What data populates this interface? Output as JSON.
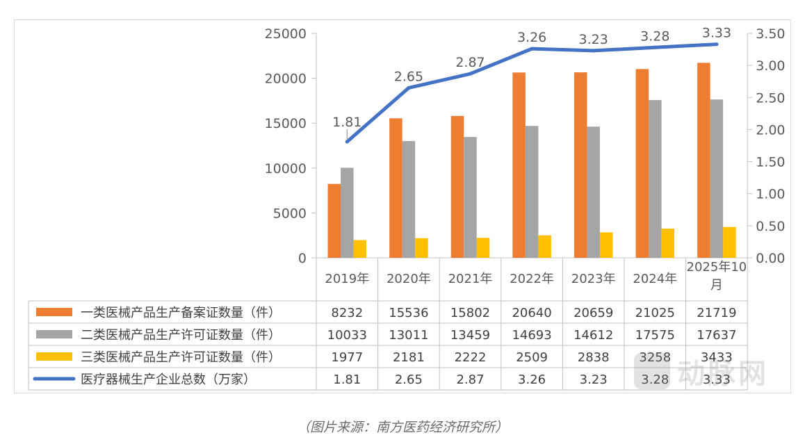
{
  "chart_data": {
    "type": "bar",
    "categories": [
      "2019年",
      "2020年",
      "2021年",
      "2022年",
      "2023年",
      "2024年",
      "2025年10月"
    ],
    "y_left": {
      "min": 0,
      "max": 25000,
      "ticks": [
        "0",
        "5000",
        "10000",
        "15000",
        "20000",
        "25000"
      ]
    },
    "y_right": {
      "min": 0,
      "max": 3.5,
      "ticks": [
        "0.00",
        "0.50",
        "1.00",
        "1.50",
        "2.00",
        "2.50",
        "3.00",
        "3.50"
      ]
    },
    "series": [
      {
        "name": "一类医械产品生产备案证数量（件）",
        "type": "bar",
        "axis": "left",
        "color": "#ed7d31",
        "values": [
          8232,
          15536,
          15802,
          20640,
          20659,
          21025,
          21719
        ],
        "labels": [
          "8232",
          "15536",
          "15802",
          "20640",
          "20659",
          "21025",
          "21719"
        ]
      },
      {
        "name": "二类医械产品生产许可证数量（件）",
        "type": "bar",
        "axis": "left",
        "color": "#a5a5a5",
        "values": [
          10033,
          13011,
          13459,
          14693,
          14612,
          17575,
          17637
        ],
        "labels": [
          "10033",
          "13011",
          "13459",
          "14693",
          "14612",
          "17575",
          "17637"
        ]
      },
      {
        "name": "三类医械产品生产许可证数量（件）",
        "type": "bar",
        "axis": "left",
        "color": "#ffc000",
        "values": [
          1977,
          2181,
          2222,
          2509,
          2838,
          3258,
          3433
        ],
        "labels": [
          "1977",
          "2181",
          "2222",
          "2509",
          "2838",
          "3258",
          "3433"
        ]
      },
      {
        "name": "医疗器械生产企业总数（万家）",
        "type": "line",
        "axis": "right",
        "color": "#4472c4",
        "values": [
          1.81,
          2.65,
          2.87,
          3.26,
          3.23,
          3.28,
          3.33
        ],
        "labels": [
          "1.81",
          "2.65",
          "2.87",
          "3.26",
          "3.23",
          "3.28",
          "3.33"
        ]
      }
    ],
    "data_table": true,
    "grid": false
  },
  "caption": "（图片来源：南方医药经济研究所）",
  "watermark": {
    "text": "动脉网",
    "icon": "brand-logo-icon"
  }
}
